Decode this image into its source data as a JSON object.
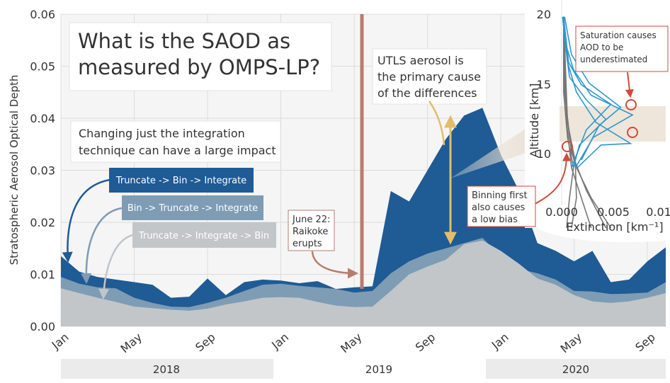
{
  "chart_data": {
    "type": "area",
    "title": "What is the SAOD as measured by OMPS-LP?",
    "ylabel": "Stratospheric Aerosol Optical Depth",
    "ylim": [
      0,
      0.06
    ],
    "y_ticks": [
      "0.00",
      "0.01",
      "0.02",
      "0.03",
      "0.04",
      "0.05",
      "0.06"
    ],
    "x_ticks": [
      "Jan",
      "May",
      "Sep",
      "Jan",
      "May",
      "Sep",
      "Jan",
      "May",
      "Sep"
    ],
    "year_labels": [
      "2018",
      "2019",
      "2020"
    ],
    "grid": true,
    "series": [
      {
        "name": "Truncate -> Bin -> Integrate",
        "color": "#1f5b94",
        "values": [
          0.0135,
          0.0105,
          0.0095,
          0.009,
          0.0085,
          0.008,
          0.0055,
          0.0057,
          0.0092,
          0.006,
          0.0085,
          0.009,
          0.0088,
          0.0083,
          0.0087,
          0.0072,
          0.0075,
          0.0077,
          0.026,
          0.024,
          0.03,
          0.036,
          0.0405,
          0.042,
          0.033,
          0.026,
          0.016,
          0.0145,
          0.0125,
          0.0145,
          0.0085,
          0.009,
          0.0125,
          0.0152
        ]
      },
      {
        "name": "Bin -> Truncate -> Integrate",
        "color": "#7f9cb5",
        "values": [
          0.0095,
          0.0082,
          0.0075,
          0.0073,
          0.0055,
          0.0045,
          0.0038,
          0.0037,
          0.0045,
          0.0055,
          0.0068,
          0.008,
          0.0082,
          0.0078,
          0.0075,
          0.0072,
          0.0065,
          0.0068,
          0.0102,
          0.0125,
          0.014,
          0.015,
          0.016,
          0.017,
          0.0135,
          0.011,
          0.0102,
          0.009,
          0.0068,
          0.0067,
          0.0062,
          0.0063,
          0.0065,
          0.0085
        ]
      },
      {
        "name": "Truncate -> Integrate -> Bin",
        "color": "#c2c6c9",
        "values": [
          0.0073,
          0.0064,
          0.0055,
          0.0047,
          0.0038,
          0.0035,
          0.0032,
          0.003,
          0.0034,
          0.0042,
          0.0048,
          0.0055,
          0.0056,
          0.0055,
          0.0047,
          0.004,
          0.0037,
          0.0038,
          0.0068,
          0.01,
          0.0115,
          0.0128,
          0.0158,
          0.0165,
          0.0145,
          0.012,
          0.0092,
          0.008,
          0.006,
          0.0048,
          0.0045,
          0.0048,
          0.0055,
          0.0064
        ]
      }
    ],
    "annotations": {
      "integration_note": [
        "Changing just the integration",
        "technique can have a large impact"
      ],
      "utls_note": [
        "UTLS aerosol is",
        "the primary cause",
        "of the differences"
      ],
      "raikoke_note": [
        "June 22:",
        "Raikoke",
        "erupts"
      ],
      "saturation_note": [
        "Saturation causes",
        "AOD to be",
        "underestimated"
      ],
      "binning_note": [
        "Binning first",
        "also causes",
        "a low bias"
      ]
    },
    "inset": {
      "type": "line",
      "ylabel": "Altitude [km]",
      "xlabel": "Extinction [km⁻¹]",
      "y_ticks": [
        "10",
        "15",
        "20"
      ],
      "x_ticks": [
        "0.000",
        "0.005",
        "0.01"
      ],
      "ylim": [
        6,
        20
      ],
      "xlim": [
        -0.0003,
        0.01
      ]
    },
    "colors": {
      "eruption_line": "#b87c6e",
      "utls_arrow": "#e3bd6b",
      "circle_marker": "#d04a3a",
      "inset_profiles_blue": "#2f97cf",
      "inset_profiles_gray": "#777777",
      "utls_band": "#eee6da"
    }
  }
}
